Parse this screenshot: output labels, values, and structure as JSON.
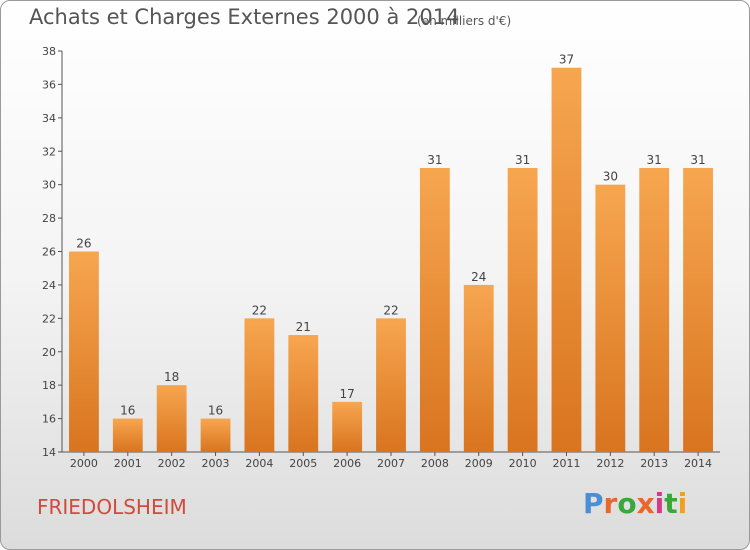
{
  "title": "Achats et Charges Externes 2000 à 2014",
  "unit_label": "(en milliers d'€)",
  "place_label": "FRIEDOLSHEIM",
  "logo": {
    "text": "Proxiti",
    "colors": [
      "#4a8fd4",
      "#e8682c",
      "#39a839",
      "#e8682c",
      "#d43a8a",
      "#39a839",
      "#f0a020"
    ]
  },
  "colors": {
    "bar_light": "#f7a650",
    "bar_dark": "#d9741f",
    "axis": "#555555",
    "place": "#d24a3a"
  },
  "chart_data": {
    "type": "bar",
    "categories": [
      "2000",
      "2001",
      "2002",
      "2003",
      "2004",
      "2005",
      "2006",
      "2007",
      "2008",
      "2009",
      "2010",
      "2011",
      "2012",
      "2013",
      "2014"
    ],
    "values": [
      26,
      16,
      18,
      16,
      22,
      21,
      17,
      22,
      31,
      24,
      31,
      37,
      30,
      31,
      31
    ],
    "ylim": [
      14,
      38
    ],
    "yticks": [
      14,
      16,
      18,
      20,
      22,
      24,
      26,
      28,
      30,
      32,
      34,
      36,
      38
    ],
    "grid": false,
    "data_labels": true
  }
}
